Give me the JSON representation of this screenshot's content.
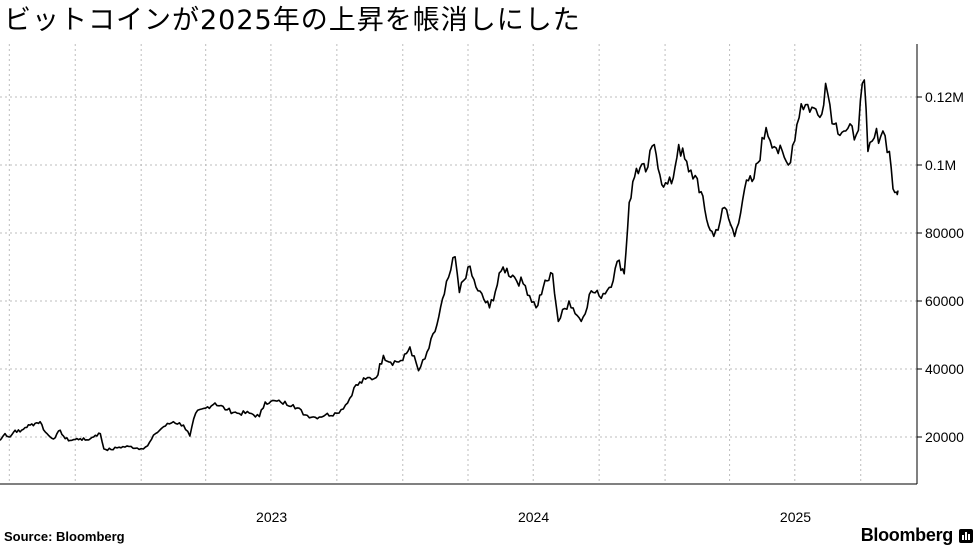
{
  "title": "ビットコインが2025年の上昇を帳消しにした",
  "source": "Source:  Bloomberg",
  "brand": "Bloomberg",
  "chart_data": {
    "type": "line",
    "title": "ビットコインが2025年の上昇を帳消しにした",
    "xlabel": "",
    "ylabel": "",
    "x_ticks": [
      "2023",
      "2024",
      "2025"
    ],
    "y_ticks": [
      {
        "value": 20000,
        "label": "20000"
      },
      {
        "value": 40000,
        "label": "40000"
      },
      {
        "value": 60000,
        "label": "60000"
      },
      {
        "value": 80000,
        "label": "80000"
      },
      {
        "value": 100000,
        "label": "0.1M"
      },
      {
        "value": 120000,
        "label": "0.12M"
      }
    ],
    "ylim": [
      8000,
      130000
    ],
    "grid": true,
    "line_color": "#000000",
    "series": [
      {
        "x": [
          "2022-06-18",
          "2022-06-25",
          "2022-07-02",
          "2022-07-09",
          "2022-07-16",
          "2022-07-23",
          "2022-07-30",
          "2022-08-06",
          "2022-08-13",
          "2022-08-20",
          "2022-08-27",
          "2022-09-03",
          "2022-09-10",
          "2022-09-17",
          "2022-09-24",
          "2022-10-01",
          "2022-10-08",
          "2022-10-15",
          "2022-10-22",
          "2022-10-29",
          "2022-11-05",
          "2022-11-10",
          "2022-11-20",
          "2022-12-01",
          "2022-12-15",
          "2023-01-01",
          "2023-01-10",
          "2023-01-21",
          "2023-02-01",
          "2023-02-15",
          "2023-03-01",
          "2023-03-10",
          "2023-03-18",
          "2023-04-01",
          "2023-04-14",
          "2023-05-01",
          "2023-05-15",
          "2023-06-01",
          "2023-06-15",
          "2023-06-23",
          "2023-07-01",
          "2023-07-15",
          "2023-08-01",
          "2023-08-18",
          "2023-09-01",
          "2023-09-15",
          "2023-10-01",
          "2023-10-16",
          "2023-10-25",
          "2023-11-10",
          "2023-11-25",
          "2023-12-05",
          "2023-12-15",
          "2024-01-01",
          "2024-01-11",
          "2024-01-23",
          "2024-02-01",
          "2024-02-15",
          "2024-02-28",
          "2024-03-05",
          "2024-03-14",
          "2024-03-20",
          "2024-04-01",
          "2024-04-15",
          "2024-05-01",
          "2024-05-20",
          "2024-06-05",
          "2024-06-20",
          "2024-07-05",
          "2024-07-15",
          "2024-07-28",
          "2024-08-05",
          "2024-08-20",
          "2024-09-06",
          "2024-09-20",
          "2024-10-01",
          "2024-10-15",
          "2024-10-29",
          "2024-11-05",
          "2024-11-12",
          "2024-11-22",
          "2024-12-05",
          "2024-12-17",
          "2024-12-30",
          "2025-01-10",
          "2025-01-20",
          "2025-02-03",
          "2025-02-15",
          "2025-02-28",
          "2025-03-10",
          "2025-03-25",
          "2025-04-08",
          "2025-04-22",
          "2025-05-05",
          "2025-05-22",
          "2025-06-05",
          "2025-06-22",
          "2025-07-10",
          "2025-07-25",
          "2025-08-05",
          "2025-08-13",
          "2025-08-25",
          "2025-09-10",
          "2025-09-25",
          "2025-10-06",
          "2025-10-11",
          "2025-10-20",
          "2025-11-01",
          "2025-11-10",
          "2025-11-15",
          "2025-11-20",
          "2025-11-22"
        ],
        "values": [
          19000,
          21000,
          20000,
          22000,
          21500,
          22800,
          23500,
          24000,
          24500,
          21500,
          20000,
          19800,
          22000,
          19500,
          19000,
          19300,
          19500,
          19100,
          19500,
          20500,
          21000,
          16500,
          16300,
          17000,
          17200,
          16600,
          17400,
          21000,
          23000,
          24500,
          23500,
          20300,
          27000,
          28500,
          30000,
          28000,
          27000,
          27000,
          26000,
          30300,
          30500,
          30200,
          29500,
          26500,
          25800,
          26500,
          27000,
          30000,
          34500,
          37000,
          37500,
          44000,
          42000,
          42500,
          46500,
          39500,
          43000,
          51000,
          62000,
          67000,
          73000,
          62500,
          70000,
          63000,
          58000,
          70000,
          67000,
          64500,
          58000,
          64000,
          68000,
          54000,
          60000,
          54000,
          63000,
          61500,
          64000,
          72000,
          68000,
          89000,
          99000,
          98000,
          106000,
          93500,
          94500,
          106000,
          98000,
          96000,
          84000,
          79000,
          87500,
          79000,
          93000,
          96000,
          111000,
          105000,
          100000,
          118000,
          117000,
          114000,
          124000,
          112000,
          110000,
          109000,
          125000,
          104000,
          108000,
          110000,
          104000,
          93000,
          92000,
          92500
        ]
      }
    ]
  }
}
